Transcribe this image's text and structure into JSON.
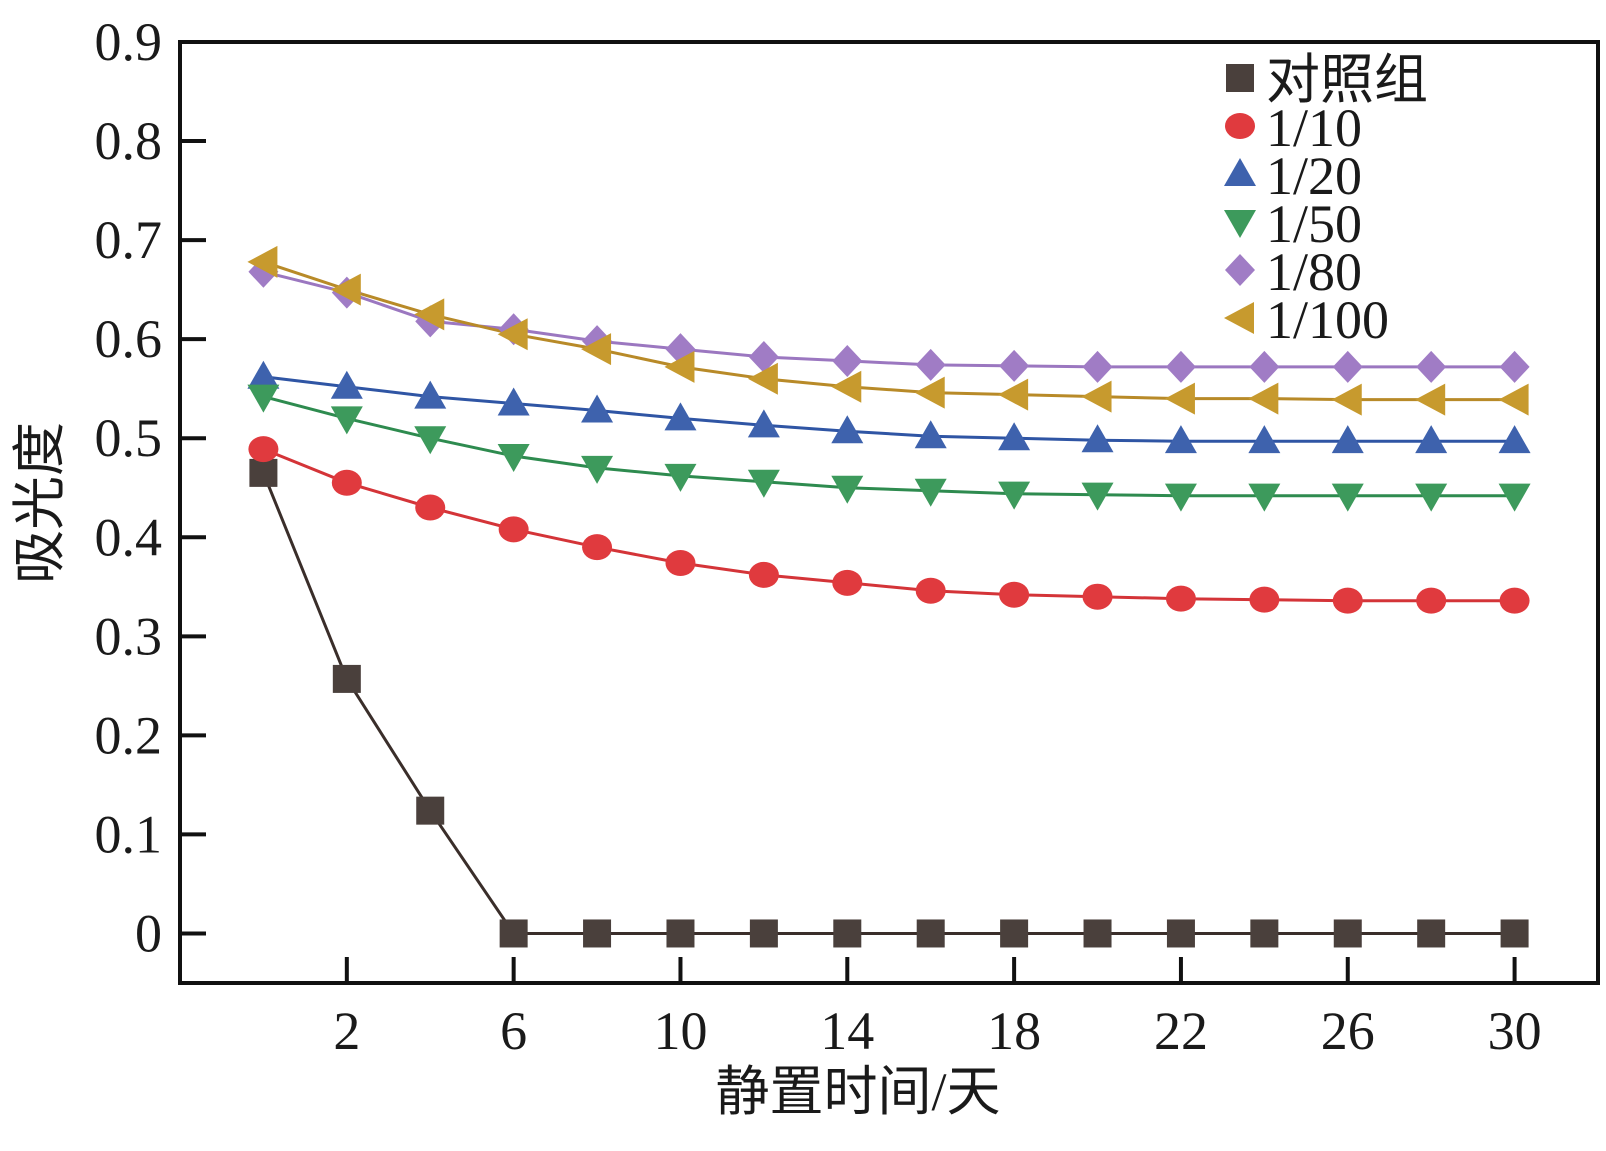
{
  "chart_data": {
    "type": "line",
    "xlabel": "静置时间/天",
    "ylabel": "吸光度",
    "xlim": [
      -2,
      32
    ],
    "ylim": [
      -0.05,
      0.9
    ],
    "x_ticks": [
      2,
      6,
      10,
      14,
      18,
      22,
      26,
      30
    ],
    "x_tick_labels": [
      "2",
      "6",
      "10",
      "14",
      "18",
      "22",
      "26",
      "30"
    ],
    "y_ticks": [
      0,
      0.1,
      0.2,
      0.3,
      0.4,
      0.5,
      0.6,
      0.7,
      0.8,
      0.9
    ],
    "y_tick_labels": [
      "0",
      "0.1",
      "0.2",
      "0.3",
      "0.4",
      "0.5",
      "0.6",
      "0.7",
      "0.8",
      "0.9"
    ],
    "grid": false,
    "legend_position": "top-right",
    "x": [
      0,
      2,
      4,
      6,
      8,
      10,
      12,
      14,
      16,
      18,
      20,
      22,
      24,
      26,
      28,
      30
    ],
    "series": [
      {
        "name": "对照组",
        "marker": "square",
        "color": "#4a403c",
        "line_color": "#3a2e2a",
        "values": [
          0.465,
          0.257,
          0.124,
          0,
          0,
          0,
          0,
          0,
          0,
          0,
          0,
          0,
          0,
          0,
          0,
          0
        ]
      },
      {
        "name": "1/10",
        "marker": "circle",
        "color": "#e03a3e",
        "line_color": "#d43438",
        "values": [
          0.489,
          0.455,
          0.43,
          0.408,
          0.39,
          0.374,
          0.362,
          0.354,
          0.346,
          0.342,
          0.34,
          0.338,
          0.337,
          0.336,
          0.336,
          0.336
        ]
      },
      {
        "name": "1/20",
        "marker": "triangle-up",
        "color": "#3e62ad",
        "line_color": "#2f55a4",
        "values": [
          0.562,
          0.552,
          0.542,
          0.535,
          0.528,
          0.52,
          0.513,
          0.507,
          0.502,
          0.5,
          0.498,
          0.497,
          0.497,
          0.497,
          0.497,
          0.497
        ]
      },
      {
        "name": "1/50",
        "marker": "triangle-down",
        "color": "#3d9a5c",
        "line_color": "#2e8b4f",
        "values": [
          0.542,
          0.52,
          0.5,
          0.482,
          0.47,
          0.462,
          0.456,
          0.45,
          0.447,
          0.444,
          0.443,
          0.442,
          0.442,
          0.442,
          0.442,
          0.442
        ]
      },
      {
        "name": "1/80",
        "marker": "diamond",
        "color": "#a07cc5",
        "line_color": "#9b77c0",
        "values": [
          0.668,
          0.647,
          0.618,
          0.61,
          0.598,
          0.59,
          0.582,
          0.578,
          0.574,
          0.573,
          0.572,
          0.572,
          0.572,
          0.572,
          0.572,
          0.572
        ]
      },
      {
        "name": "1/100",
        "marker": "triangle-left",
        "color": "#c79a2e",
        "line_color": "#b88a28",
        "values": [
          0.678,
          0.65,
          0.625,
          0.605,
          0.59,
          0.572,
          0.56,
          0.552,
          0.546,
          0.544,
          0.542,
          0.54,
          0.54,
          0.539,
          0.539,
          0.539
        ]
      }
    ]
  }
}
